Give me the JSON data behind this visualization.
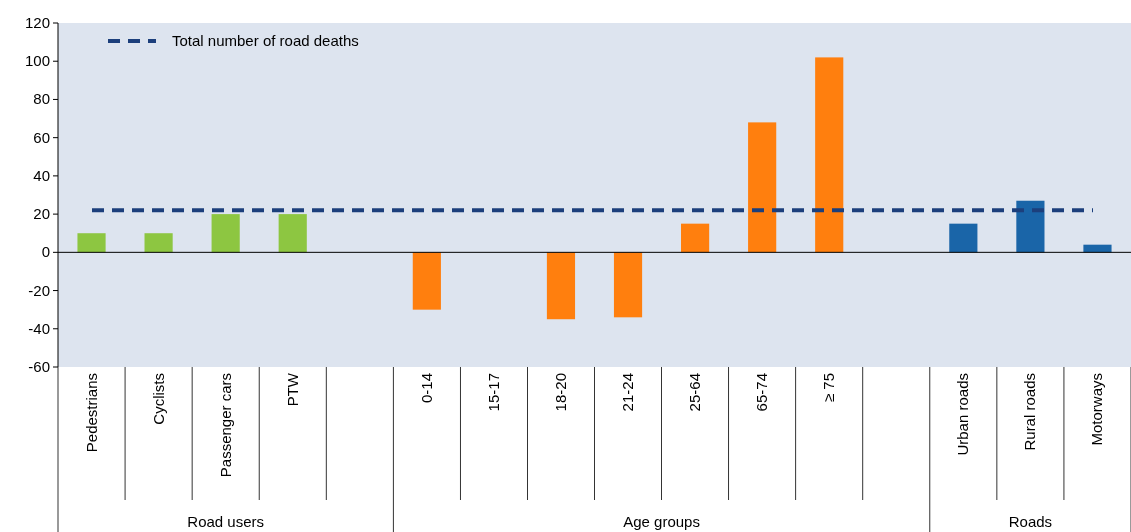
{
  "chart_data": {
    "type": "bar",
    "categories": [
      "Pedestrians",
      "Cyclists",
      "Passenger cars",
      "PTW",
      null,
      "0-14",
      "15-17",
      "18-20",
      "21-24",
      "25-64",
      "65-74",
      "≥ 75",
      null,
      "Urban roads",
      "Rural roads",
      "Motorways"
    ],
    "values": [
      10,
      10,
      20,
      20,
      null,
      -30,
      0,
      -35,
      -34,
      15,
      68,
      102,
      null,
      15,
      27,
      4
    ],
    "colors": [
      "#8dc641",
      "#8dc641",
      "#8dc641",
      "#8dc641",
      null,
      "#ff7f0e",
      "#ff7f0e",
      "#ff7f0e",
      "#ff7f0e",
      "#ff7f0e",
      "#ff7f0e",
      "#ff7f0e",
      null,
      "#1a65a8",
      "#1a65a8",
      "#1a65a8"
    ],
    "ylim": [
      -60,
      120
    ],
    "yticks": [
      -60,
      -40,
      -20,
      0,
      20,
      40,
      60,
      80,
      100,
      120
    ],
    "ref_lines": [
      {
        "axis": "y",
        "value": 22,
        "label": "Total number of road deaths",
        "color": "#1c3f7c",
        "line_style": "dashed"
      }
    ],
    "legend": "top left",
    "annotations": [
      "Road users",
      "Age groups",
      "Roads"
    ]
  }
}
